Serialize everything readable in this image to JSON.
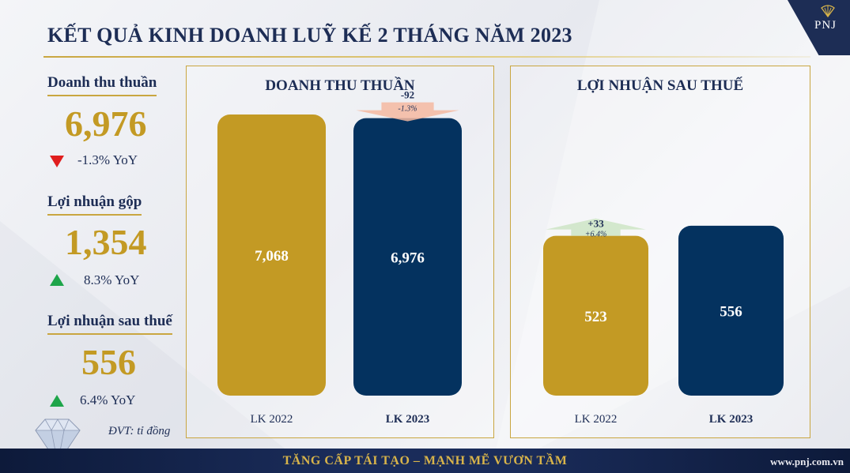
{
  "title": "KẾT QUẢ KINH DOANH LUỸ KẾ 2 THÁNG NĂM 2023",
  "logo_text": "PNJ",
  "kpis": [
    {
      "label": "Doanh thu thuần",
      "value": "6,976",
      "change": "-1.3% YoY",
      "direction": "down"
    },
    {
      "label": "Lợi nhuận gộp",
      "value": "1,354",
      "change": "8.3% YoY",
      "direction": "up"
    },
    {
      "label": "Lợi nhuận sau thuế",
      "value": "556",
      "change": "6.4% YoY",
      "direction": "up"
    }
  ],
  "unit": "ĐVT: tỉ đồng",
  "footer": {
    "slogan": "TĂNG CẤP TÁI TẠO – MẠNH MẼ VƯƠN TẦM",
    "url": "www.pnj.com.vn"
  },
  "colors": {
    "gold": "#c39a24",
    "navy": "#04325f",
    "title_navy": "#1d2d55",
    "down_arrow": "#f4b8a0",
    "up_arrow": "#cfe5c8"
  },
  "chart_data": [
    {
      "type": "bar",
      "title": "DOANH THU THUẦN",
      "categories": [
        "LK 2022",
        "LK 2023"
      ],
      "values": [
        7068,
        6976
      ],
      "labels": [
        "7,068",
        "6,976"
      ],
      "ylim": [
        0,
        7068
      ],
      "delta": {
        "value": "-92",
        "pct": "-1.3%",
        "direction": "down",
        "on_category": 1
      }
    },
    {
      "type": "bar",
      "title": "LỢI NHUẬN SAU THUẾ",
      "categories": [
        "LK 2022",
        "LK 2023"
      ],
      "values": [
        523,
        556
      ],
      "labels": [
        "523",
        "556"
      ],
      "ylim": [
        0,
        920
      ],
      "delta": {
        "value": "+33",
        "pct": "+6.4%",
        "direction": "up",
        "on_category": 0
      }
    }
  ]
}
